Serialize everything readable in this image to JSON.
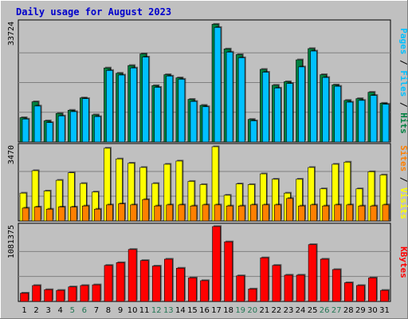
{
  "chart_data": {
    "title": "Daily usage for August 2023",
    "days": [
      "1",
      "2",
      "3",
      "4",
      "5",
      "6",
      "7",
      "8",
      "9",
      "10",
      "11",
      "12",
      "13",
      "14",
      "15",
      "16",
      "17",
      "18",
      "19",
      "20",
      "21",
      "22",
      "23",
      "24",
      "25",
      "26",
      "27",
      "28",
      "29",
      "30",
      "31"
    ],
    "weekend_days": [
      "5",
      "6",
      "12",
      "13",
      "19",
      "20",
      "26",
      "27"
    ],
    "colors": {
      "title": "#0000cc",
      "weekday": "#000000",
      "weekend": "#227755",
      "hits": "#008040",
      "files": "#00c0ff",
      "pages": "#00c0ff",
      "visits": "#ffff00",
      "sites": "#ff8000",
      "kbytes": "#ff0000",
      "plot_bg": "#c0c0c0",
      "frame_bg": "#c0c0c0"
    },
    "panels": [
      {
        "type": "bar",
        "name": "hits_files_pages",
        "ymax_label": "33724",
        "ymax": 33724,
        "series": [
          {
            "name": "Hits",
            "values": [
              6900,
              11400,
              6000,
              8100,
              9000,
              12500,
              7700,
              21000,
              19500,
              21700,
              25000,
              16000,
              19100,
              18200,
              12100,
              10400,
              33400,
              26400,
              24800,
              6400,
              20600,
              16100,
              17100,
              23300,
              26500,
              19100,
              16200,
              11800,
              12300,
              14100,
              11000
            ]
          },
          {
            "name": "Files",
            "values": [
              6500,
              10200,
              5500,
              7400,
              8600,
              12300,
              7200,
              20300,
              19000,
              21000,
              24100,
              15500,
              18700,
              17800,
              11500,
              10000,
              32500,
              25500,
              23900,
              6000,
              19800,
              15300,
              16600,
              21300,
              25800,
              18300,
              15800,
              11300,
              11800,
              13200,
              10700
            ]
          }
        ],
        "legend": [
          {
            "label": "Pages",
            "color_key": "pages"
          },
          {
            "label": "Files",
            "color_key": "files"
          },
          {
            "label": "Hits",
            "color_key": "hits"
          }
        ]
      },
      {
        "type": "bar",
        "name": "visits_sites",
        "ymax_label": "3470",
        "ymax": 3470,
        "series": [
          {
            "name": "Visits",
            "values": [
              1300,
              2350,
              1400,
              1900,
              2250,
              1750,
              1350,
              3400,
              2900,
              2700,
              2500,
              1750,
              2650,
              2800,
              1850,
              1700,
              3470,
              1200,
              1730,
              1700,
              2200,
              1950,
              1300,
              1950,
              2500,
              1500,
              2650,
              2750,
              1500,
              2300,
              2150
            ]
          },
          {
            "name": "Sites",
            "values": [
              600,
              650,
              550,
              650,
              650,
              700,
              550,
              750,
              800,
              750,
              1000,
              700,
              750,
              750,
              700,
              750,
              750,
              700,
              700,
              750,
              750,
              750,
              1050,
              700,
              750,
              700,
              750,
              750,
              700,
              700,
              750
            ]
          }
        ],
        "legend": [
          {
            "label": "Sites",
            "color_key": "sites"
          },
          {
            "label": "Visits",
            "color_key": "visits"
          }
        ]
      },
      {
        "type": "bar",
        "name": "kbytes",
        "ymax_label": "1081375",
        "ymax": 1081375,
        "series": [
          {
            "name": "KBytes",
            "values": [
              120000,
              230000,
              170000,
              160000,
              210000,
              230000,
              240000,
              520000,
              560000,
              750000,
              590000,
              510000,
              610000,
              480000,
              340000,
              300000,
              1081375,
              860000,
              370000,
              180000,
              630000,
              520000,
              380000,
              380000,
              820000,
              610000,
              460000,
              270000,
              230000,
              340000,
              160000
            ]
          }
        ],
        "legend": [
          {
            "label": "KBytes",
            "color_key": "kbytes"
          }
        ]
      }
    ]
  }
}
